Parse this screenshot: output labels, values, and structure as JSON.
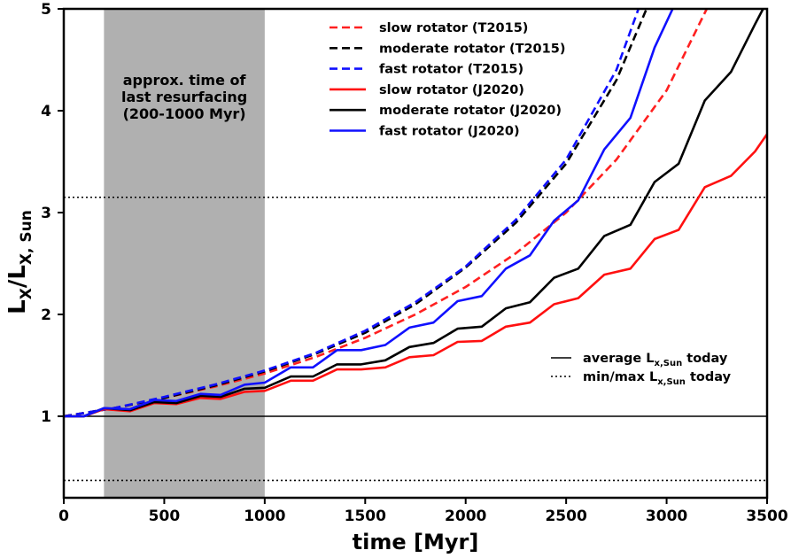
{
  "chart_data": {
    "type": "line",
    "xlabel": "time [Myr]",
    "ylabel_main": "L",
    "ylabel_sub1": "X",
    "ylabel_mid": "/L",
    "ylabel_sub2": "X, Sun",
    "xlim": [
      0,
      3500
    ],
    "ylim": [
      0.2,
      5
    ],
    "xticks": [
      0,
      500,
      1000,
      1500,
      2000,
      2500,
      3000,
      3500
    ],
    "yticks": [
      1,
      2,
      3,
      4,
      5
    ],
    "shaded_region": {
      "x": [
        200,
        1000
      ],
      "color": "#b0b0b0",
      "label_lines": [
        "approx. time of",
        "last resurfacing",
        "(200-1000 Myr)"
      ]
    },
    "reference_lines": [
      {
        "y": 1.0,
        "style": "solid",
        "label": "average L",
        "label_sub": "x,Sun",
        "label_end": " today"
      },
      {
        "y": 3.15,
        "style": "dotted",
        "label": "min/max L",
        "label_sub": "x,Sun",
        "label_end": " today"
      },
      {
        "y": 0.37,
        "style": "dotted"
      }
    ],
    "series": [
      {
        "name": "slow rotator (T2015)",
        "color": "#ff2020",
        "dash": "dashed",
        "x": [
          0,
          250,
          500,
          750,
          1000,
          1250,
          1500,
          1750,
          2000,
          2250,
          2500,
          2750,
          3000,
          3200
        ],
        "y": [
          1.0,
          1.08,
          1.18,
          1.29,
          1.42,
          1.58,
          1.77,
          2.0,
          2.27,
          2.6,
          3.0,
          3.52,
          4.2,
          5.0
        ]
      },
      {
        "name": "moderate rotator (T2015)",
        "color": "#000000",
        "dash": "dashed",
        "x": [
          0,
          250,
          500,
          750,
          1000,
          1250,
          1500,
          1750,
          2000,
          2250,
          2500,
          2750,
          2900
        ],
        "y": [
          1.0,
          1.08,
          1.18,
          1.3,
          1.44,
          1.61,
          1.82,
          2.1,
          2.46,
          2.9,
          3.48,
          4.3,
          5.0
        ]
      },
      {
        "name": "fast rotator (T2015)",
        "color": "#1010ff",
        "dash": "dashed",
        "x": [
          0,
          250,
          500,
          750,
          1000,
          1250,
          1500,
          1750,
          2000,
          2250,
          2500,
          2750,
          2860
        ],
        "y": [
          1.0,
          1.08,
          1.19,
          1.31,
          1.45,
          1.62,
          1.84,
          2.12,
          2.47,
          2.93,
          3.52,
          4.4,
          5.0
        ]
      },
      {
        "name": "slow rotator (J2020)",
        "color": "#ff1010",
        "dash": "solid",
        "x": [
          0,
          100,
          200,
          330,
          450,
          560,
          680,
          780,
          900,
          1000,
          1130,
          1240,
          1360,
          1480,
          1600,
          1720,
          1840,
          1960,
          2080,
          2200,
          2320,
          2440,
          2560,
          2690,
          2820,
          2940,
          3060,
          3190,
          3320,
          3440,
          3500
        ],
        "y": [
          1.0,
          1.0,
          1.07,
          1.05,
          1.13,
          1.12,
          1.18,
          1.17,
          1.24,
          1.25,
          1.35,
          1.35,
          1.46,
          1.46,
          1.48,
          1.58,
          1.6,
          1.73,
          1.74,
          1.88,
          1.92,
          2.1,
          2.16,
          2.39,
          2.45,
          2.74,
          2.83,
          3.25,
          3.36,
          3.6,
          3.77
        ]
      },
      {
        "name": "moderate rotator (J2020)",
        "color": "#000000",
        "dash": "solid",
        "x": [
          0,
          100,
          200,
          330,
          450,
          560,
          680,
          780,
          900,
          1000,
          1130,
          1240,
          1360,
          1480,
          1600,
          1720,
          1840,
          1960,
          2080,
          2200,
          2320,
          2440,
          2560,
          2690,
          2820,
          2940,
          3060,
          3190,
          3320,
          3440,
          3480
        ],
        "y": [
          1.0,
          1.0,
          1.08,
          1.06,
          1.14,
          1.13,
          1.2,
          1.19,
          1.27,
          1.28,
          1.39,
          1.39,
          1.51,
          1.51,
          1.55,
          1.68,
          1.72,
          1.86,
          1.88,
          2.06,
          2.12,
          2.36,
          2.45,
          2.77,
          2.88,
          3.3,
          3.48,
          4.1,
          4.38,
          4.85,
          5.0
        ]
      },
      {
        "name": "fast rotator (J2020)",
        "color": "#1010ff",
        "dash": "solid",
        "x": [
          0,
          100,
          200,
          330,
          450,
          560,
          680,
          780,
          900,
          1000,
          1130,
          1240,
          1360,
          1480,
          1600,
          1720,
          1840,
          1960,
          2080,
          2200,
          2320,
          2440,
          2560,
          2690,
          2820,
          2940,
          3030
        ],
        "y": [
          1.0,
          1.0,
          1.08,
          1.07,
          1.16,
          1.15,
          1.22,
          1.21,
          1.31,
          1.33,
          1.48,
          1.48,
          1.65,
          1.65,
          1.7,
          1.87,
          1.92,
          2.13,
          2.18,
          2.45,
          2.58,
          2.92,
          3.12,
          3.62,
          3.93,
          4.62,
          5.0
        ]
      }
    ]
  }
}
